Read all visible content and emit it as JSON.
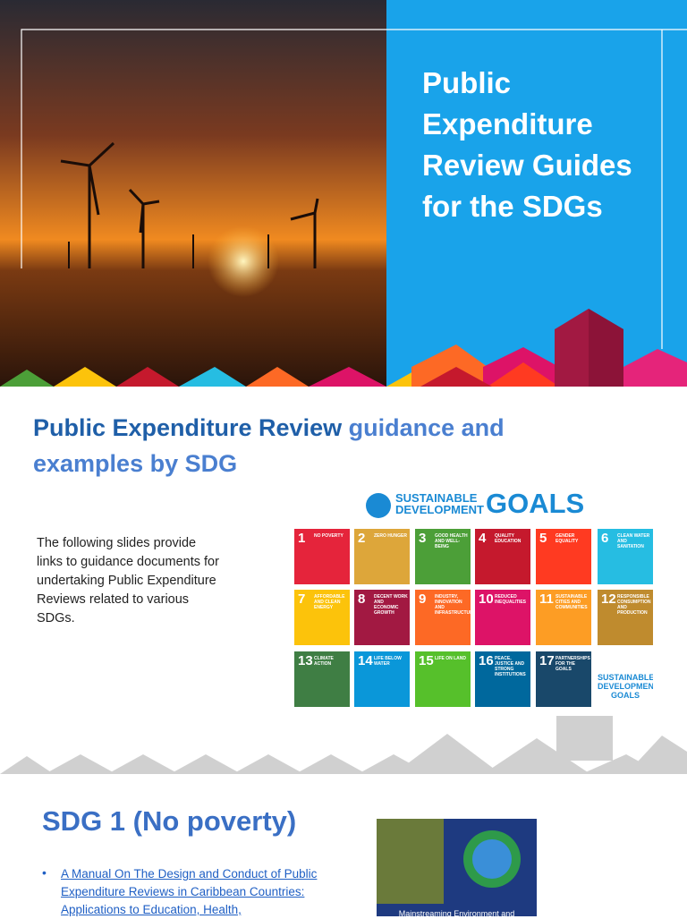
{
  "slides": [
    {
      "title": "Public Expenditure Review Guides for the SDGs"
    },
    {
      "heading_bold": "Public Expenditure Review",
      "heading_rest": " guidance and examples by SDG",
      "body": "The following slides provide links to guidance documents for undertaking Public Expenditure Reviews related to various SDGs.",
      "logo": {
        "line1": "SUSTAINABLE",
        "line2": "DEVELOPMENT",
        "word": "GOALS"
      },
      "goals": [
        {
          "number": 1,
          "label": "NO POVERTY",
          "color": "#e5243b"
        },
        {
          "number": 2,
          "label": "ZERO HUNGER",
          "color": "#dda63a"
        },
        {
          "number": 3,
          "label": "GOOD HEALTH AND WELL-BEING",
          "color": "#4c9f38"
        },
        {
          "number": 4,
          "label": "QUALITY EDUCATION",
          "color": "#c5192d"
        },
        {
          "number": 5,
          "label": "GENDER EQUALITY",
          "color": "#ff3a21"
        },
        {
          "number": 6,
          "label": "CLEAN WATER AND SANITATION",
          "color": "#26bde2"
        },
        {
          "number": 7,
          "label": "AFFORDABLE AND CLEAN ENERGY",
          "color": "#fcc30b"
        },
        {
          "number": 8,
          "label": "DECENT WORK AND ECONOMIC GROWTH",
          "color": "#a21942"
        },
        {
          "number": 9,
          "label": "INDUSTRY, INNOVATION AND INFRASTRUCTURE",
          "color": "#fd6925"
        },
        {
          "number": 10,
          "label": "REDUCED INEQUALITIES",
          "color": "#dd1367"
        },
        {
          "number": 11,
          "label": "SUSTAINABLE CITIES AND COMMUNITIES",
          "color": "#fd9d24"
        },
        {
          "number": 12,
          "label": "RESPONSIBLE CONSUMPTION AND PRODUCTION",
          "color": "#bf8b2e"
        },
        {
          "number": 13,
          "label": "CLIMATE ACTION",
          "color": "#3f7e44"
        },
        {
          "number": 14,
          "label": "LIFE BELOW WATER",
          "color": "#0a97d9"
        },
        {
          "number": 15,
          "label": "LIFE ON LAND",
          "color": "#56c02b"
        },
        {
          "number": 16,
          "label": "PEACE, JUSTICE AND STRONG INSTITUTIONS",
          "color": "#00689d"
        },
        {
          "number": 17,
          "label": "PARTNERSHIPS FOR THE GOALS",
          "color": "#19486a"
        }
      ],
      "final_tile": "SUSTAINABLE DEVELOPMENT GOALS"
    },
    {
      "heading": "SDG 1 (No poverty)",
      "link": "A Manual On The Design and Conduct of Public Expenditure Reviews in Caribbean Countries: Applications to Education, Health,",
      "cover_text": "Mainstreaming Environment and"
    }
  ]
}
